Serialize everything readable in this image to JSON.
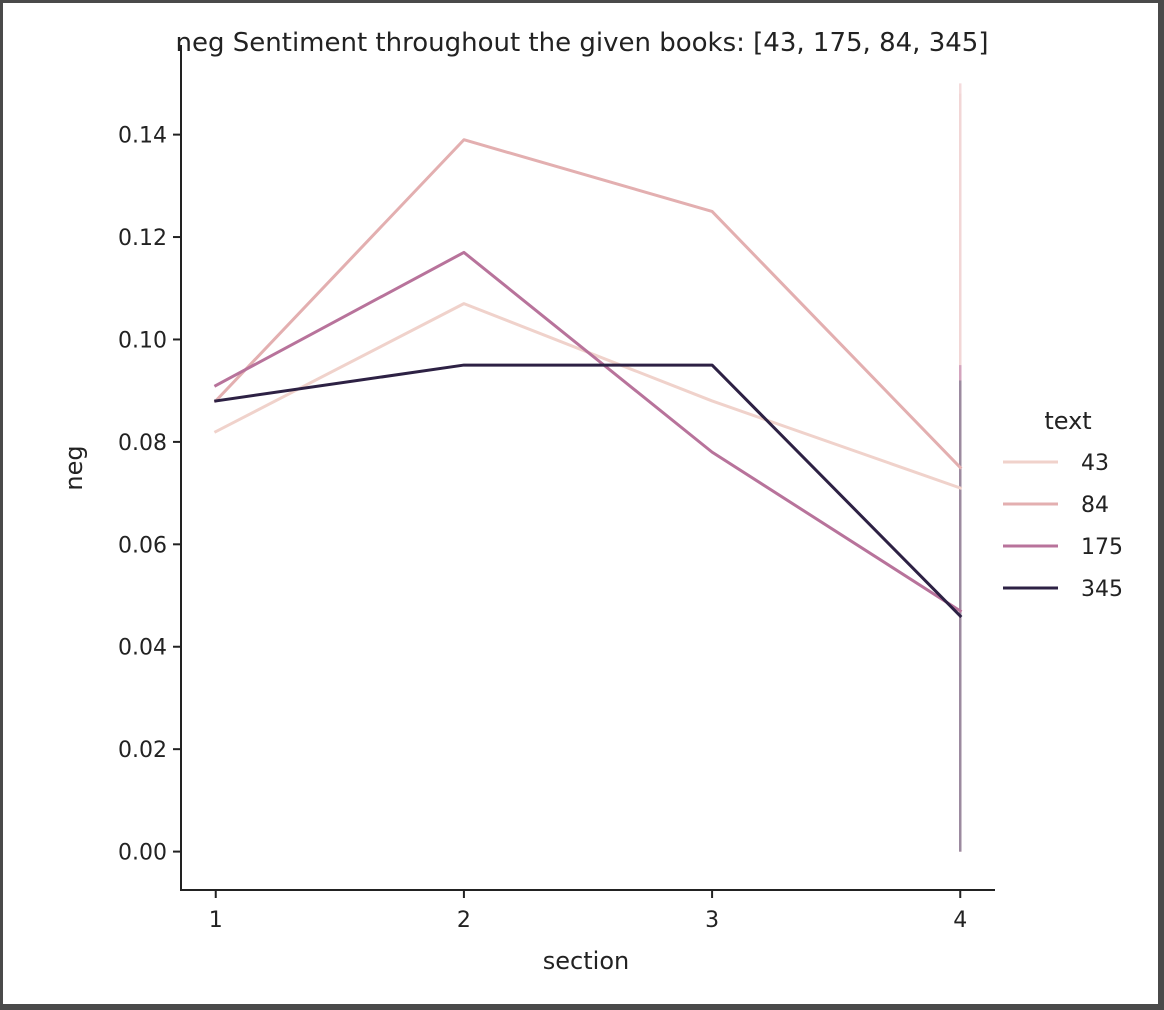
{
  "chart_data": {
    "type": "line",
    "title": "neg Sentiment throughout the given books: [43, 175, 84, 345]",
    "xlabel": "section",
    "ylabel": "neg",
    "x": [
      1,
      2,
      3,
      4
    ],
    "xticks": [
      "1",
      "2",
      "3",
      "4"
    ],
    "yticks": [
      "0.00",
      "0.02",
      "0.04",
      "0.06",
      "0.08",
      "0.10",
      "0.12",
      "0.14"
    ],
    "ylim": [
      -0.0075,
      0.1575
    ],
    "xlim": [
      0.86,
      4.14
    ],
    "grid": false,
    "legend": {
      "title": "text",
      "placement": "right",
      "order": [
        "43",
        "84",
        "175",
        "345"
      ]
    },
    "series": [
      {
        "name": "43",
        "color": "#f0d2cb",
        "values": [
          0.082,
          0.107,
          0.088,
          0.071
        ]
      },
      {
        "name": "84",
        "color": "#e3afb0",
        "values": [
          0.088,
          0.139,
          0.125,
          0.075
        ]
      },
      {
        "name": "175",
        "color": "#b8739b",
        "values": [
          0.091,
          0.117,
          0.078,
          0.047
        ]
      },
      {
        "name": "345",
        "color": "#2d2144",
        "values": [
          0.088,
          0.095,
          0.095,
          0.046
        ]
      }
    ],
    "error_bars": [
      {
        "series": "43",
        "x": 4,
        "low": 0.0,
        "high": 0.148,
        "color": "#f6e2dc"
      },
      {
        "series": "84",
        "x": 4,
        "low": 0.0,
        "high": 0.15,
        "color": "#f0cfd0"
      },
      {
        "series": "175",
        "x": 4,
        "low": 0.0,
        "high": 0.095,
        "color": "#c893b4"
      },
      {
        "series": "345",
        "x": 4,
        "low": 0.0,
        "high": 0.092,
        "color": "#8a8196"
      }
    ]
  }
}
